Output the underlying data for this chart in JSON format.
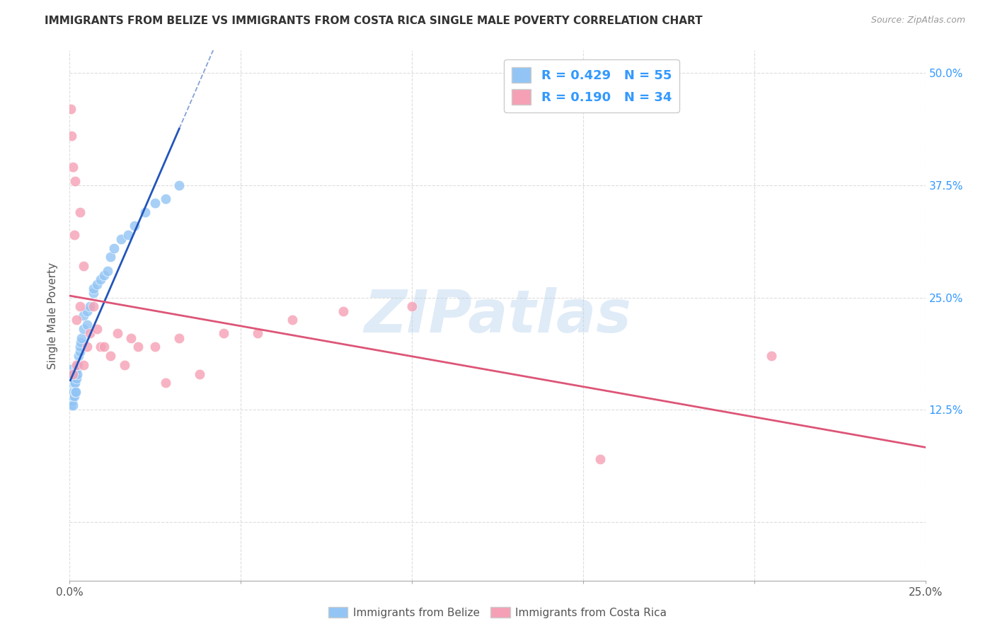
{
  "title": "IMMIGRANTS FROM BELIZE VS IMMIGRANTS FROM COSTA RICA SINGLE MALE POVERTY CORRELATION CHART",
  "source": "Source: ZipAtlas.com",
  "ylabel": "Single Male Poverty",
  "R_belize": 0.429,
  "N_belize": 55,
  "R_costa_rica": 0.19,
  "N_costa_rica": 34,
  "color_belize": "#92c5f5",
  "color_costa_rica": "#f5a0b5",
  "color_belize_line": "#2255bb",
  "color_costa_rica_line": "#dd5577",
  "watermark_text": "ZIPatlas",
  "xlim": [
    0.0,
    0.25
  ],
  "ylim": [
    -0.065,
    0.525
  ],
  "belize_x": [
    0.0002,
    0.0003,
    0.0004,
    0.0004,
    0.0005,
    0.0005,
    0.0006,
    0.0006,
    0.0007,
    0.0007,
    0.0008,
    0.0008,
    0.0009,
    0.001,
    0.001,
    0.001,
    0.001,
    0.0012,
    0.0012,
    0.0013,
    0.0014,
    0.0015,
    0.0015,
    0.0016,
    0.0017,
    0.0018,
    0.002,
    0.002,
    0.0022,
    0.0023,
    0.0025,
    0.003,
    0.003,
    0.0032,
    0.0035,
    0.004,
    0.004,
    0.005,
    0.005,
    0.006,
    0.007,
    0.007,
    0.008,
    0.009,
    0.01,
    0.011,
    0.012,
    0.013,
    0.015,
    0.017,
    0.019,
    0.022,
    0.025,
    0.028,
    0.032
  ],
  "belize_y": [
    0.165,
    0.17,
    0.13,
    0.155,
    0.145,
    0.155,
    0.14,
    0.155,
    0.135,
    0.15,
    0.14,
    0.155,
    0.14,
    0.13,
    0.145,
    0.155,
    0.165,
    0.145,
    0.16,
    0.14,
    0.155,
    0.145,
    0.16,
    0.155,
    0.165,
    0.145,
    0.16,
    0.17,
    0.165,
    0.175,
    0.185,
    0.19,
    0.195,
    0.2,
    0.205,
    0.215,
    0.23,
    0.22,
    0.235,
    0.24,
    0.255,
    0.26,
    0.265,
    0.27,
    0.275,
    0.28,
    0.295,
    0.305,
    0.315,
    0.32,
    0.33,
    0.345,
    0.355,
    0.36,
    0.375
  ],
  "costa_rica_x": [
    0.0003,
    0.0005,
    0.001,
    0.001,
    0.0013,
    0.0015,
    0.002,
    0.002,
    0.003,
    0.003,
    0.004,
    0.004,
    0.005,
    0.006,
    0.007,
    0.008,
    0.009,
    0.01,
    0.012,
    0.014,
    0.016,
    0.018,
    0.02,
    0.025,
    0.028,
    0.032,
    0.038,
    0.045,
    0.055,
    0.065,
    0.08,
    0.1,
    0.155,
    0.205
  ],
  "costa_rica_y": [
    0.46,
    0.43,
    0.395,
    0.165,
    0.32,
    0.38,
    0.175,
    0.225,
    0.345,
    0.24,
    0.175,
    0.285,
    0.195,
    0.21,
    0.24,
    0.215,
    0.195,
    0.195,
    0.185,
    0.21,
    0.175,
    0.205,
    0.195,
    0.195,
    0.155,
    0.205,
    0.165,
    0.21,
    0.21,
    0.225,
    0.235,
    0.24,
    0.07,
    0.185
  ],
  "xtick_positions": [
    0.0,
    0.05,
    0.1,
    0.15,
    0.2,
    0.25
  ],
  "xtick_labels_show": [
    "0.0%",
    "25.0%"
  ],
  "ytick_positions": [
    0.0,
    0.125,
    0.25,
    0.375,
    0.5
  ],
  "ytick_labels_right": [
    "",
    "12.5%",
    "25.0%",
    "37.5%",
    "50.0%"
  ]
}
